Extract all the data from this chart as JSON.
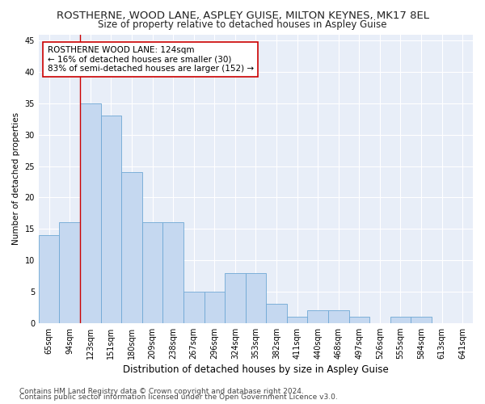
{
  "title": "ROSTHERNE, WOOD LANE, ASPLEY GUISE, MILTON KEYNES, MK17 8EL",
  "subtitle": "Size of property relative to detached houses in Aspley Guise",
  "xlabel": "Distribution of detached houses by size in Aspley Guise",
  "ylabel": "Number of detached properties",
  "categories": [
    "65sqm",
    "94sqm",
    "123sqm",
    "151sqm",
    "180sqm",
    "209sqm",
    "238sqm",
    "267sqm",
    "296sqm",
    "324sqm",
    "353sqm",
    "382sqm",
    "411sqm",
    "440sqm",
    "468sqm",
    "497sqm",
    "526sqm",
    "555sqm",
    "584sqm",
    "613sqm",
    "641sqm"
  ],
  "values": [
    14,
    16,
    35,
    33,
    24,
    16,
    16,
    5,
    5,
    8,
    8,
    3,
    1,
    2,
    2,
    1,
    0,
    1,
    1,
    0,
    0
  ],
  "bar_color": "#c5d8f0",
  "bar_edge_color": "#6fa8d5",
  "vline_x_index": 2,
  "vline_color": "#cc0000",
  "annotation_line1": "ROSTHERNE WOOD LANE: 124sqm",
  "annotation_line2": "← 16% of detached houses are smaller (30)",
  "annotation_line3": "83% of semi-detached houses are larger (152) →",
  "annotation_box_color": "#ffffff",
  "annotation_box_edge_color": "#cc0000",
  "ylim": [
    0,
    46
  ],
  "yticks": [
    0,
    5,
    10,
    15,
    20,
    25,
    30,
    35,
    40,
    45
  ],
  "footer_line1": "Contains HM Land Registry data © Crown copyright and database right 2024.",
  "footer_line2": "Contains public sector information licensed under the Open Government Licence v3.0.",
  "fig_bg_color": "#ffffff",
  "plot_bg_color": "#e8eef8",
  "grid_color": "#ffffff",
  "title_fontsize": 9.5,
  "subtitle_fontsize": 8.5,
  "xlabel_fontsize": 8.5,
  "ylabel_fontsize": 7.5,
  "tick_fontsize": 7,
  "annotation_fontsize": 7.5,
  "footer_fontsize": 6.5
}
